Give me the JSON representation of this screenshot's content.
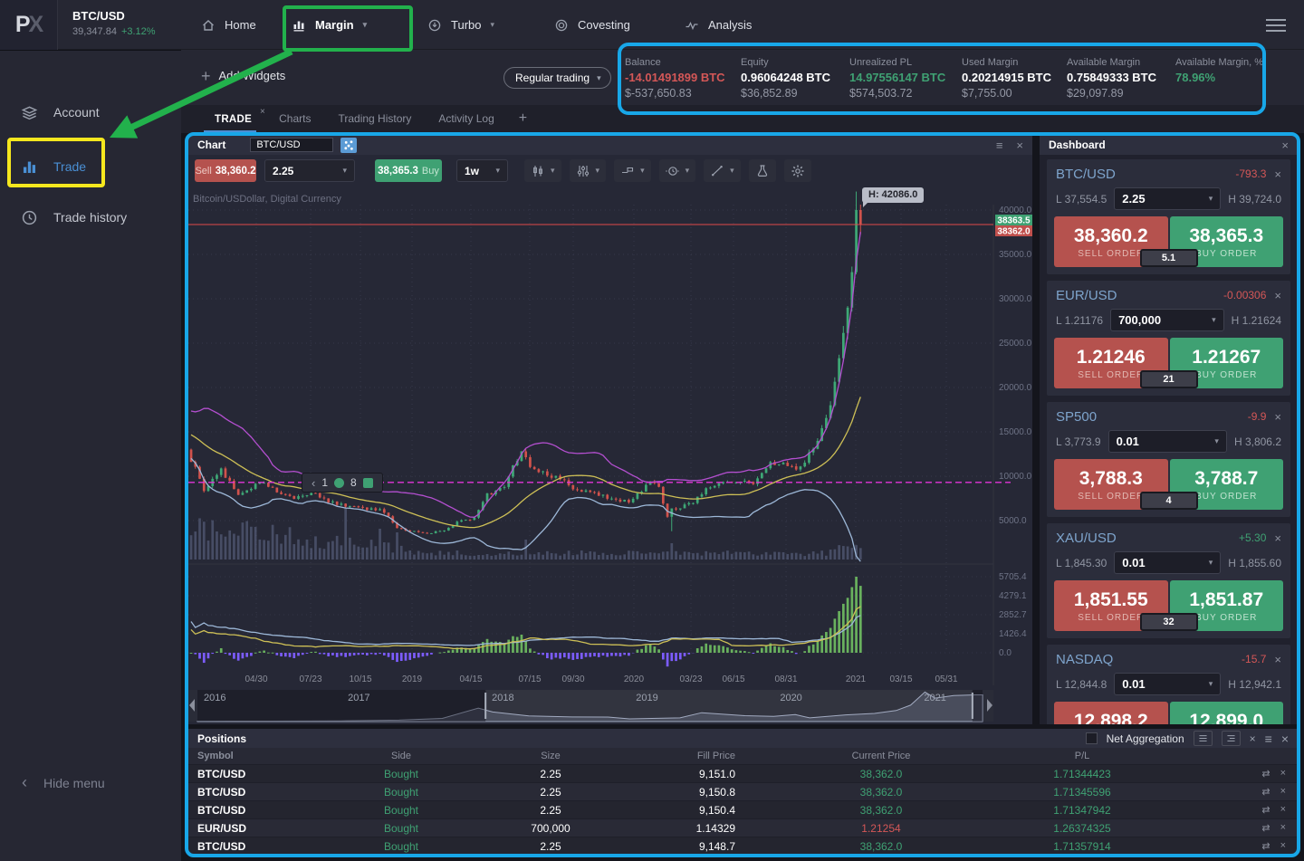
{
  "topnav": {
    "logo_primary": "P",
    "logo_secondary": "X",
    "symbol": "BTC/USD",
    "price": "39,347.84",
    "change": "+3.12%",
    "items": [
      {
        "id": "home",
        "label": "Home",
        "icon": "home",
        "caret": false,
        "active": false
      },
      {
        "id": "margin",
        "label": "Margin",
        "icon": "margin",
        "caret": true,
        "active": true
      },
      {
        "id": "turbo",
        "label": "Turbo",
        "icon": "turbo",
        "caret": true,
        "active": false
      },
      {
        "id": "covesting",
        "label": "Covesting",
        "icon": "covesting",
        "caret": false,
        "active": false
      },
      {
        "id": "analysis",
        "label": "Analysis",
        "icon": "analysis",
        "caret": false,
        "active": false
      }
    ]
  },
  "widgets_bar": {
    "add_widgets": "Add Widgets",
    "mode": "Regular trading"
  },
  "account_summary": [
    {
      "label": "Balance",
      "value": "-14.01491899 BTC",
      "sub": "$-537,650.83",
      "value_color": "red"
    },
    {
      "label": "Equity",
      "value": "0.96064248 BTC",
      "sub": "$36,852.89",
      "value_color": "white"
    },
    {
      "label": "Unrealized PL",
      "value": "14.97556147 BTC",
      "sub": "$574,503.72",
      "value_color": "green"
    },
    {
      "label": "Used Margin",
      "value": "0.20214915 BTC",
      "sub": "$7,755.00",
      "value_color": "white"
    },
    {
      "label": "Available Margin",
      "value": "0.75849333 BTC",
      "sub": "$29,097.89",
      "value_color": "white"
    },
    {
      "label": "Available Margin, %",
      "value": "78.96%",
      "sub": "",
      "value_color": "green"
    }
  ],
  "sidebar": {
    "items": [
      {
        "id": "account",
        "label": "Account",
        "icon": "layers",
        "active": false
      },
      {
        "id": "trade",
        "label": "Trade",
        "icon": "trade",
        "active": true
      },
      {
        "id": "trade-history",
        "label": "Trade history",
        "icon": "clock",
        "active": false
      }
    ],
    "hide_menu": "Hide menu"
  },
  "tabs": [
    {
      "label": "TRADE",
      "active": true,
      "closable": true
    },
    {
      "label": "Charts",
      "active": false,
      "closable": false
    },
    {
      "label": "Trading History",
      "active": false,
      "closable": false
    },
    {
      "label": "Activity Log",
      "active": false,
      "closable": false
    }
  ],
  "tabs_add_label": "+",
  "chart_panel": {
    "title": "Chart",
    "symbol_input": "BTC/USD",
    "sell_label": "Sell",
    "sell_price": "38,360.2",
    "qty": "2.25",
    "buy_price": "38,365.3",
    "buy_label": "Buy",
    "timeframe": "1w",
    "toolbar_icons": [
      {
        "icon": "candles",
        "caret": true
      },
      {
        "icon": "indicators",
        "caret": true
      },
      {
        "icon": "measure",
        "caret": true
      },
      {
        "icon": "sessions",
        "caret": true
      },
      {
        "icon": "trendline",
        "caret": true
      },
      {
        "icon": "flask",
        "caret": false
      },
      {
        "icon": "gear",
        "caret": false
      }
    ],
    "subtitle": "Bitcoin/USDollar, Digital Currency",
    "high_tooltip": "H: 42086.0",
    "ask_badge": "38363.5",
    "bid_badge": "38362.0",
    "marker": {
      "back": "‹",
      "a": "1",
      "b": "8"
    }
  },
  "dashboard": {
    "title": "Dashboard",
    "sell_order_label": "SELL ORDER",
    "buy_order_label": "BUY ORDER",
    "cards": [
      {
        "symbol": "BTC/USD",
        "change": "-793.3",
        "change_color": "red",
        "low": "L 37,554.5",
        "qty": "2.25",
        "high": "H 39,724.0",
        "sell": "38,360.2",
        "buy": "38,365.3",
        "spread": "5.1"
      },
      {
        "symbol": "EUR/USD",
        "change": "-0.00306",
        "change_color": "red",
        "low": "L 1.21176",
        "qty": "700,000",
        "high": "H 1.21624",
        "sell": "1.21246",
        "buy": "1.21267",
        "spread": "21"
      },
      {
        "symbol": "SP500",
        "change": "-9.9",
        "change_color": "red",
        "low": "L 3,773.9",
        "qty": "0.01",
        "high": "H 3,806.2",
        "sell": "3,788.3",
        "buy": "3,788.7",
        "spread": "4"
      },
      {
        "symbol": "XAU/USD",
        "change": "+5.30",
        "change_color": "green",
        "low": "L 1,845.30",
        "qty": "0.01",
        "high": "H 1,855.60",
        "sell": "1,851.55",
        "buy": "1,851.87",
        "spread": "32"
      },
      {
        "symbol": "NASDAQ",
        "change": "-15.7",
        "change_color": "red",
        "low": "L 12,844.8",
        "qty": "0.01",
        "high": "H 12,942.1",
        "sell": "12,898.2",
        "buy": "12,899.0",
        "spread": ""
      }
    ]
  },
  "positions": {
    "title": "Positions",
    "net_aggregation": "Net Aggregation",
    "columns": [
      "Symbol",
      "Side",
      "Size",
      "Fill Price",
      "Current Price",
      "P/L"
    ],
    "rows": [
      {
        "symbol": "BTC/USD",
        "side": "Bought",
        "size": "2.25",
        "fill": "9,151.0",
        "current": "38,362.0",
        "current_color": "green",
        "pl": "1.71344423"
      },
      {
        "symbol": "BTC/USD",
        "side": "Bought",
        "size": "2.25",
        "fill": "9,150.8",
        "current": "38,362.0",
        "current_color": "green",
        "pl": "1.71345596"
      },
      {
        "symbol": "BTC/USD",
        "side": "Bought",
        "size": "2.25",
        "fill": "9,150.4",
        "current": "38,362.0",
        "current_color": "green",
        "pl": "1.71347942"
      },
      {
        "symbol": "EUR/USD",
        "side": "Bought",
        "size": "700,000",
        "fill": "1.14329",
        "current": "1.21254",
        "current_color": "red",
        "pl": "1.26374325"
      },
      {
        "symbol": "BTC/USD",
        "side": "Bought",
        "size": "2.25",
        "fill": "9,148.7",
        "current": "38,362.0",
        "current_color": "green",
        "pl": "1.71357914"
      }
    ]
  },
  "chart_data": {
    "type": "candlestick",
    "title": "Bitcoin/USDollar, Digital Currency",
    "timeframe": "1w",
    "current_bid": 38362.0,
    "current_ask": 38363.5,
    "session_high": 42086.0,
    "alert_level": 9300,
    "y_ticks": [
      40000,
      35000,
      30000,
      25000,
      20000,
      15000,
      10000,
      5000
    ],
    "y_ticks_lower": [
      5705.4,
      4279.1,
      2852.7,
      1426.4,
      0.0
    ],
    "x_ticks": [
      "04/30",
      "07/23",
      "10/15",
      "2019",
      "04/15",
      "07/15",
      "09/30",
      "2020",
      "03/23",
      "06/15",
      "08/31",
      "2021",
      "03/15",
      "05/31"
    ],
    "weeks": 157,
    "close_anchors": [
      [
        0,
        13000
      ],
      [
        4,
        8500
      ],
      [
        8,
        10800
      ],
      [
        12,
        7900
      ],
      [
        17,
        9300
      ],
      [
        21,
        8400
      ],
      [
        25,
        7600
      ],
      [
        29,
        8100
      ],
      [
        33,
        7200
      ],
      [
        37,
        6700
      ],
      [
        41,
        6400
      ],
      [
        45,
        6300
      ],
      [
        47,
        5600
      ],
      [
        49,
        4200
      ],
      [
        52,
        3800
      ],
      [
        56,
        3500
      ],
      [
        60,
        3950
      ],
      [
        64,
        5100
      ],
      [
        67,
        5300
      ],
      [
        70,
        7900
      ],
      [
        74,
        9000
      ],
      [
        78,
        12900
      ],
      [
        80,
        11000
      ],
      [
        84,
        10300
      ],
      [
        88,
        9600
      ],
      [
        91,
        8300
      ],
      [
        95,
        8200
      ],
      [
        99,
        7400
      ],
      [
        103,
        7150
      ],
      [
        106,
        8500
      ],
      [
        108,
        9500
      ],
      [
        110,
        8800
      ],
      [
        112,
        5300
      ],
      [
        113,
        6200
      ],
      [
        118,
        7100
      ],
      [
        122,
        8900
      ],
      [
        128,
        9400
      ],
      [
        132,
        9100
      ],
      [
        136,
        11300
      ],
      [
        139,
        11700
      ],
      [
        142,
        10600
      ],
      [
        146,
        13100
      ],
      [
        150,
        18000
      ],
      [
        152,
        23300
      ],
      [
        154,
        29000
      ],
      [
        155,
        33000
      ],
      [
        156,
        40000
      ],
      [
        157,
        38362
      ]
    ],
    "volume_spikes": {
      "36": 57,
      "44": 34,
      "48": 30,
      "78": 22,
      "112": 18
    },
    "low_wick_factor": {
      "112": 0.7
    },
    "navigator": {
      "years": [
        "2016",
        "2017",
        "2018",
        "2019",
        "2020",
        "2021"
      ],
      "range": [
        2016.0,
        2021.45
      ],
      "selection": [
        2018.0,
        2021.38
      ],
      "anchors": [
        [
          2016.0,
          450
        ],
        [
          2016.5,
          680
        ],
        [
          2017.0,
          1000
        ],
        [
          2017.4,
          2100
        ],
        [
          2017.7,
          4500
        ],
        [
          2017.95,
          19000
        ],
        [
          2018.05,
          13500
        ],
        [
          2018.3,
          8000
        ],
        [
          2018.6,
          6500
        ],
        [
          2018.85,
          6400
        ],
        [
          2019.0,
          3800
        ],
        [
          2019.35,
          5200
        ],
        [
          2019.5,
          12500
        ],
        [
          2019.8,
          8300
        ],
        [
          2020.0,
          7200
        ],
        [
          2020.15,
          9800
        ],
        [
          2020.25,
          5200
        ],
        [
          2020.5,
          9400
        ],
        [
          2020.7,
          11500
        ],
        [
          2020.85,
          15500
        ],
        [
          2020.95,
          23000
        ],
        [
          2021.05,
          41500
        ],
        [
          2021.12,
          33000
        ],
        [
          2021.25,
          36500
        ],
        [
          2021.4,
          37500
        ]
      ]
    }
  },
  "colors": {
    "buy_green": "#3fa173",
    "sell_red": "#b5524e",
    "accent_blue": "#4a8fd4",
    "up_candle": "#3ea876",
    "down_candle": "#d1524c",
    "annotation_green": "#22b14c",
    "annotation_yellow": "#f5e71e",
    "annotation_blue": "#18a7e8"
  }
}
